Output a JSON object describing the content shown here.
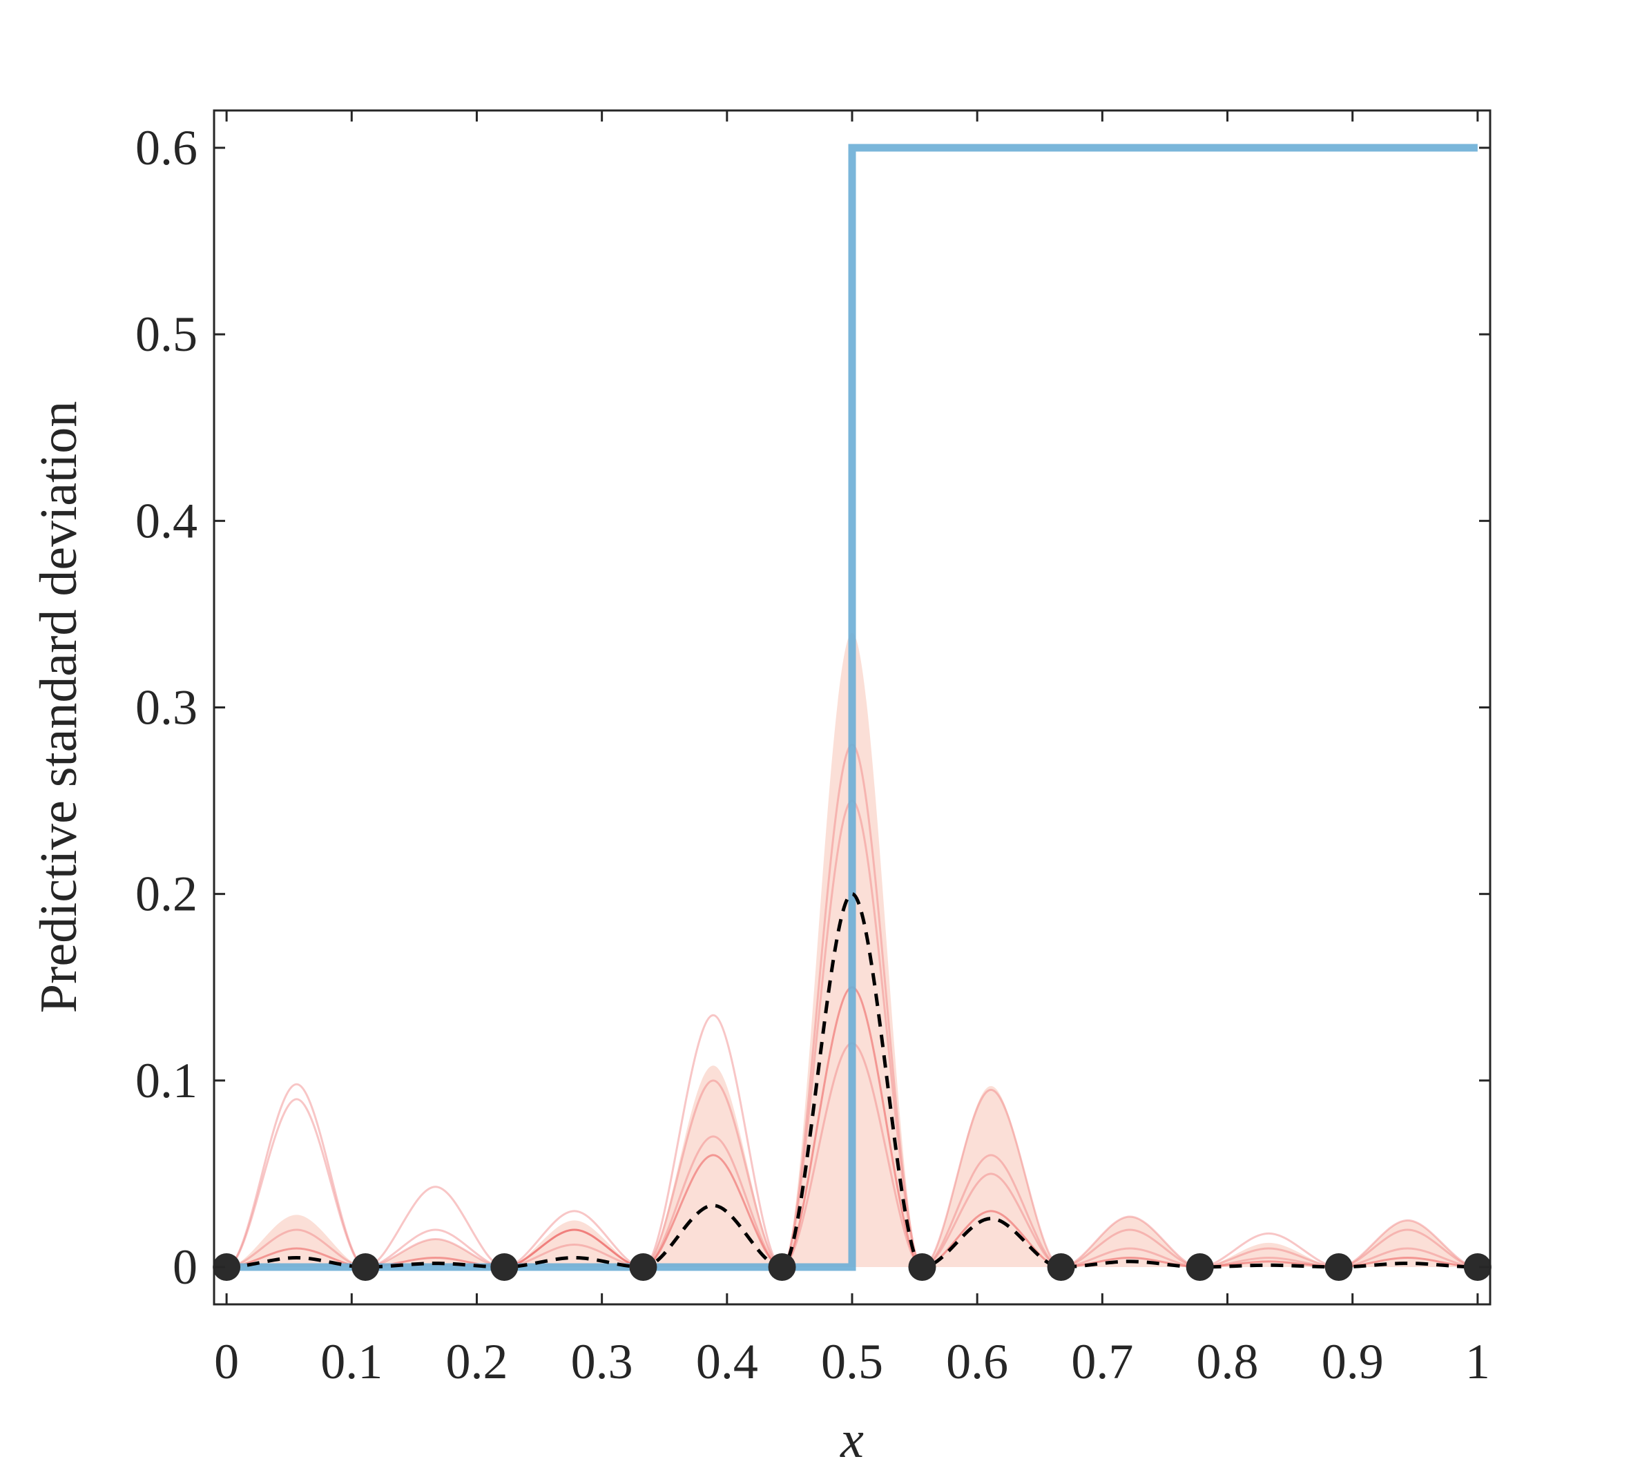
{
  "chart_data": {
    "type": "line",
    "xlabel": "x",
    "ylabel": "Predictive standard deviation",
    "xlim": [
      -0.01,
      1.01
    ],
    "ylim": [
      -0.02,
      0.62
    ],
    "xticks": [
      0,
      0.1,
      0.2,
      0.3,
      0.4,
      0.5,
      0.6,
      0.7,
      0.8,
      0.9,
      1
    ],
    "yticks": [
      0,
      0.1,
      0.2,
      0.3,
      0.4,
      0.5,
      0.6
    ],
    "series": [
      {
        "style": "band",
        "color": "#f9c9bd",
        "x": [
          0,
          0.056,
          0.111,
          0.167,
          0.222,
          0.278,
          0.333,
          0.389,
          0.444,
          0.5,
          0.556,
          0.611,
          0.667,
          0.722,
          0.778,
          0.833,
          0.889,
          0.944,
          1
        ],
        "values": [
          0,
          0.028,
          0,
          0.015,
          0,
          0.025,
          0,
          0.108,
          0,
          0.34,
          0,
          0.097,
          0,
          0.027,
          0,
          0.013,
          0,
          0.025,
          0
        ]
      },
      {
        "style": "sample",
        "color": "#f08080",
        "x": [
          0,
          0.056,
          0.111,
          0.167,
          0.222,
          0.278,
          0.333,
          0.389,
          0.444,
          0.5,
          0.556,
          0.611,
          0.667,
          0.722,
          0.778,
          0.833,
          0.889,
          0.944,
          1
        ],
        "values": [
          0,
          0.098,
          0,
          0.043,
          0,
          0.03,
          0,
          0.135,
          0,
          0.12,
          0,
          0.06,
          0,
          0.02,
          0,
          0.018,
          0,
          0.025,
          0
        ]
      },
      {
        "style": "sample",
        "color": "#f08080",
        "x": [
          0,
          0.056,
          0.111,
          0.167,
          0.222,
          0.278,
          0.333,
          0.389,
          0.444,
          0.5,
          0.556,
          0.611,
          0.667,
          0.722,
          0.778,
          0.833,
          0.889,
          0.944,
          1
        ],
        "values": [
          0,
          0.09,
          0,
          0.02,
          0,
          0.02,
          0,
          0.07,
          0,
          0.28,
          0,
          0.095,
          0,
          0.027,
          0,
          0.01,
          0,
          0.02,
          0
        ]
      },
      {
        "style": "sample",
        "color": "#f08080",
        "x": [
          0,
          0.056,
          0.111,
          0.167,
          0.222,
          0.278,
          0.333,
          0.389,
          0.444,
          0.5,
          0.556,
          0.611,
          0.667,
          0.722,
          0.778,
          0.833,
          0.889,
          0.944,
          1
        ],
        "values": [
          0,
          0.02,
          0,
          0.015,
          0,
          0.012,
          0,
          0.1,
          0,
          0.25,
          0,
          0.05,
          0,
          0.01,
          0,
          0.005,
          0,
          0.01,
          0
        ]
      },
      {
        "style": "sample",
        "color": "#e84040",
        "x": [
          0,
          0.056,
          0.111,
          0.167,
          0.222,
          0.278,
          0.333,
          0.389,
          0.444,
          0.5,
          0.556,
          0.611,
          0.667,
          0.722,
          0.778,
          0.833,
          0.889,
          0.944,
          1
        ],
        "values": [
          0,
          0.01,
          0,
          0.005,
          0,
          0.02,
          0,
          0.06,
          0,
          0.15,
          0,
          0.03,
          0,
          0.005,
          0,
          0.003,
          0,
          0.005,
          0
        ]
      },
      {
        "style": "step",
        "color": "#6baed6",
        "x": [
          0,
          0.5,
          0.5,
          1
        ],
        "values": [
          0,
          0,
          0.6,
          0.6
        ]
      },
      {
        "style": "dashed",
        "color": "#000000",
        "x": [
          0,
          0.056,
          0.111,
          0.167,
          0.222,
          0.278,
          0.333,
          0.389,
          0.444,
          0.5,
          0.556,
          0.611,
          0.667,
          0.722,
          0.778,
          0.833,
          0.889,
          0.944,
          1
        ],
        "values": [
          0,
          0.005,
          0,
          0.002,
          0,
          0.005,
          0,
          0.033,
          0,
          0.2,
          0,
          0.026,
          0,
          0.003,
          0,
          0.001,
          0,
          0.002,
          0
        ]
      },
      {
        "style": "points",
        "color": "#2b2b2b",
        "x": [
          0,
          0.111,
          0.222,
          0.333,
          0.444,
          0.556,
          0.667,
          0.778,
          0.889,
          1
        ],
        "values": [
          0,
          0,
          0,
          0,
          0,
          0,
          0,
          0,
          0,
          0
        ]
      }
    ]
  }
}
